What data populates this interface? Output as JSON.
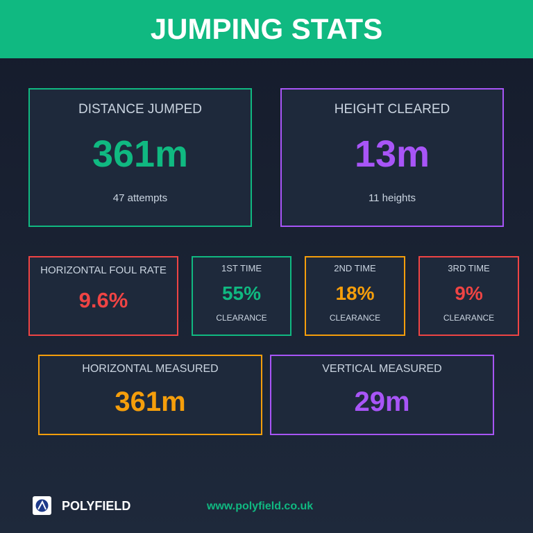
{
  "header": {
    "title": "JUMPING STATS"
  },
  "cards": [
    {
      "label": "DISTANCE JUMPED",
      "value": "361m",
      "note": "47 attempts"
    },
    {
      "label": "HEIGHT CLEARED",
      "value": "13m",
      "note": "11 heights"
    },
    {
      "label": "HORIZONTAL FOUL RATE",
      "value": "9.6%"
    },
    {
      "label": "1ST TIME",
      "value": "55%",
      "note": "CLEARANCE"
    },
    {
      "label": "2ND TIME",
      "value": "18%",
      "note": "CLEARANCE"
    },
    {
      "label": "3RD TIME",
      "value": "9%",
      "note": "CLEARANCE"
    },
    {
      "label": "HORIZONTAL MEASURED",
      "value": "361m"
    },
    {
      "label": "VERTICAL MEASURED",
      "value": "29m"
    }
  ],
  "footer": {
    "brand": "POLYFIELD",
    "url": "www.polyfield.co.uk"
  }
}
